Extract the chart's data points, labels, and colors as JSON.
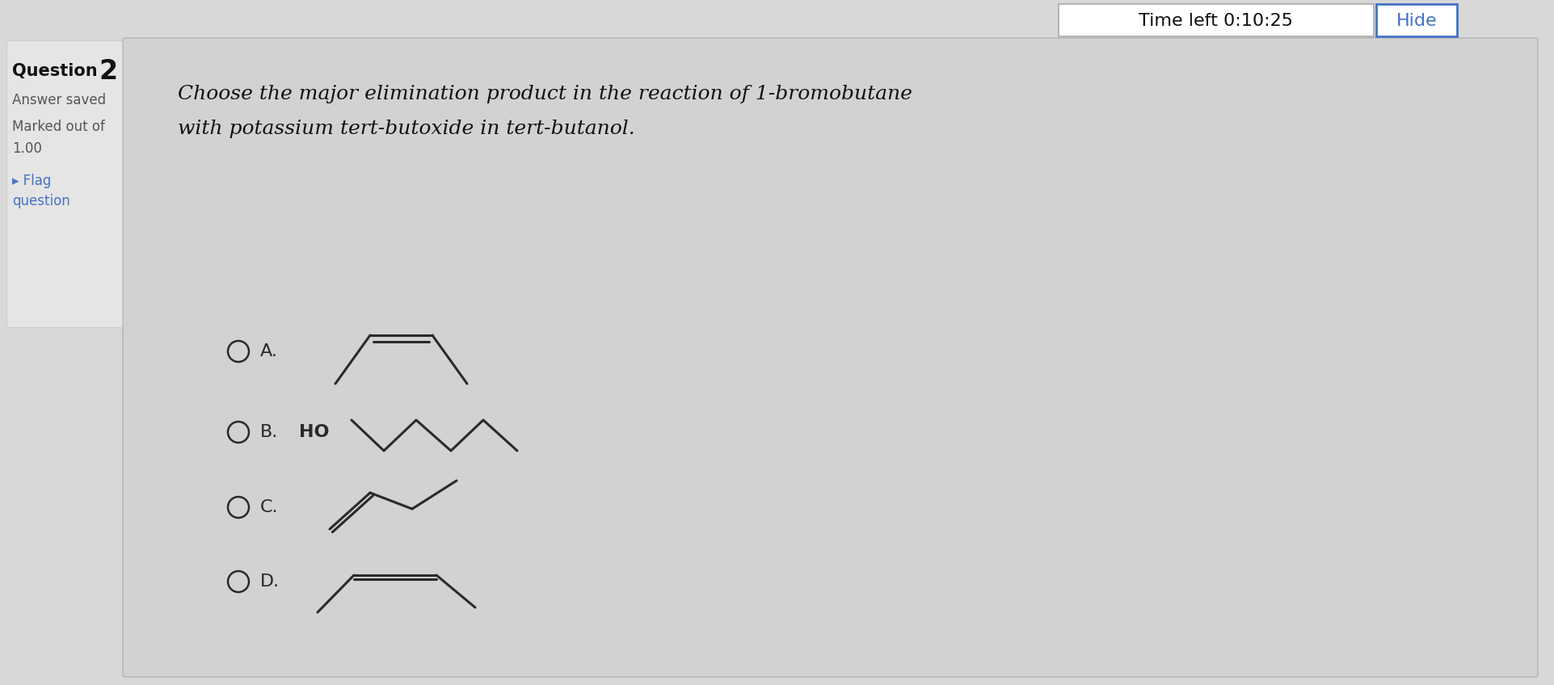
{
  "bg_color": "#d8d8d8",
  "main_panel_color": "#d0d0d0",
  "left_panel_color": "#e8e8e8",
  "timer_text": "Time left 0:10:25",
  "hide_text": "Hide",
  "hide_color": "#4472c4",
  "line_color": "#2a2a2a",
  "text_color": "#2a2a2a",
  "question_text_line1": "Choose the major elimination product in the reaction of 1-bromobutane",
  "question_text_line2": "with potassium tert-butoxide in tert-butanol."
}
